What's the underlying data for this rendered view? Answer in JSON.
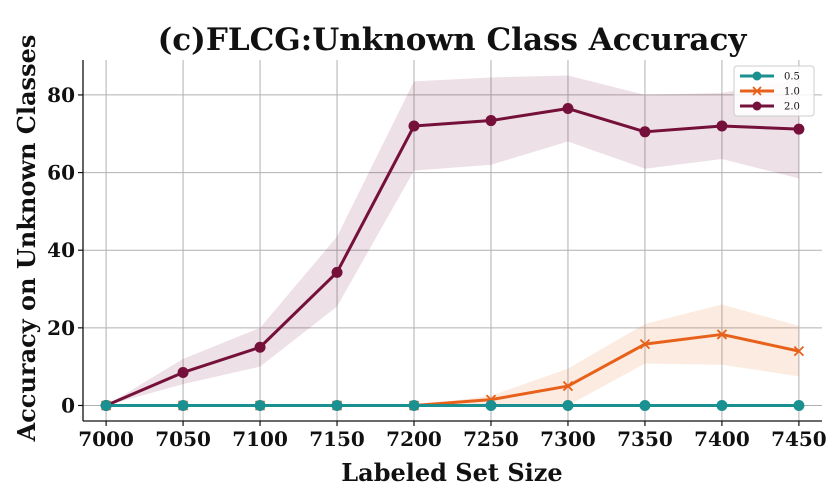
{
  "chart_data": {
    "type": "line",
    "title": "(c)FLCG:Unknown Class Accuracy",
    "xlabel": "Labeled Set Size",
    "ylabel": "Accuracy on Unknown Classes",
    "x": [
      7000,
      7050,
      7100,
      7150,
      7200,
      7250,
      7300,
      7350,
      7400,
      7450
    ],
    "xlim": [
      6985,
      7465
    ],
    "ylim": [
      -4,
      89
    ],
    "yticks": [
      0,
      20,
      40,
      60,
      80
    ],
    "grid": true,
    "legend_position": "top-right",
    "series": [
      {
        "name": "0.5",
        "color": "#1a9090",
        "marker": "circle",
        "values": [
          0,
          0,
          0,
          0,
          0,
          0,
          0,
          0,
          0,
          0
        ],
        "lower": [
          0,
          0,
          0,
          0,
          0,
          0,
          0,
          0,
          0,
          0
        ],
        "upper": [
          0,
          0,
          0,
          0,
          0,
          0,
          0,
          0,
          0,
          0
        ]
      },
      {
        "name": "1.0",
        "color": "#e8611a",
        "marker": "x",
        "values": [
          0,
          0,
          0,
          0,
          0,
          1.5,
          5,
          15.8,
          18.3,
          14
        ],
        "lower": [
          0,
          0,
          0,
          0,
          0,
          0,
          0,
          10.8,
          10.5,
          7.5
        ],
        "upper": [
          0,
          0,
          0,
          0,
          0,
          2.5,
          9.5,
          21,
          26,
          20.5
        ]
      },
      {
        "name": "2.0",
        "color": "#74103a",
        "marker": "circle",
        "values": [
          0,
          8.5,
          15,
          34.3,
          72,
          73.4,
          76.5,
          70.5,
          72,
          71.2
        ],
        "lower": [
          0,
          5.5,
          10,
          25.5,
          60.5,
          62,
          68,
          61,
          63.5,
          58.5
        ],
        "upper": [
          0,
          12,
          20,
          43.5,
          83.5,
          84.5,
          85,
          80,
          80.5,
          84
        ]
      }
    ]
  }
}
